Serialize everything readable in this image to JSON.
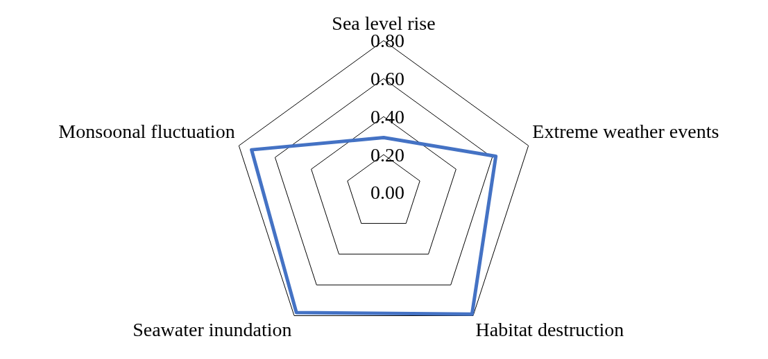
{
  "chart_data": {
    "type": "radar",
    "categories": [
      "Sea level rise",
      "Extreme weather events",
      "Habitat destruction",
      "Seawater inundation",
      "Monsoonal fluctuation"
    ],
    "series": [
      {
        "color": "#4472c4",
        "values": [
          0.29,
          0.62,
          0.79,
          0.78,
          0.73
        ]
      }
    ],
    "ylim": [
      0,
      0.8
    ],
    "yticks": [
      {
        "value": 0,
        "label": "0.00"
      },
      {
        "value": 0.2,
        "label": "0.20"
      },
      {
        "value": 0.4,
        "label": "0.40"
      },
      {
        "value": 0.6,
        "label": "0.60"
      },
      {
        "value": 0.8,
        "label": "0.80"
      }
    ],
    "grid": true,
    "legend": false,
    "marker": "none",
    "line_style": "solid"
  }
}
